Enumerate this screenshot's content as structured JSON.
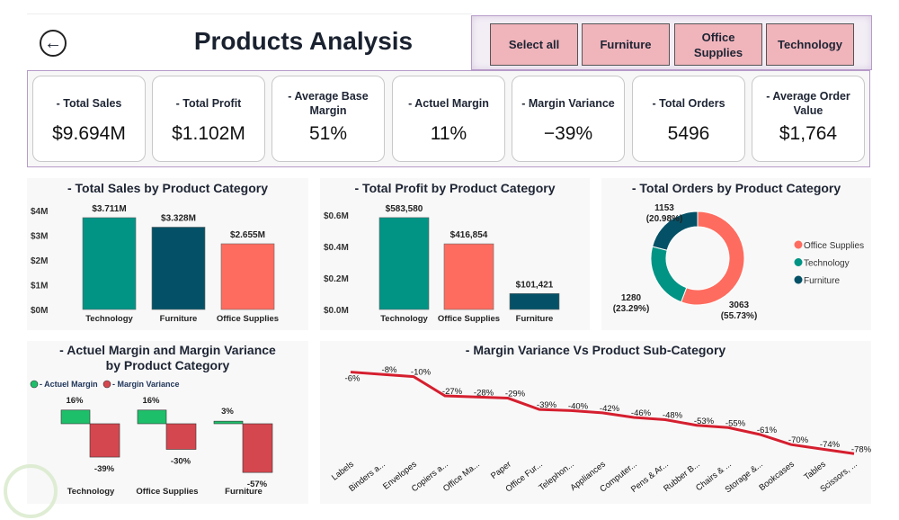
{
  "header": {
    "title": "Products Analysis",
    "back_icon": "arrow-left-circle-icon"
  },
  "slicer": {
    "buttons": [
      "Select all",
      "Furniture",
      "Office Supplies",
      "Technology"
    ],
    "color": "#f0b4bb"
  },
  "kpis": [
    {
      "label": "- Total Sales",
      "value": "$9.694M"
    },
    {
      "label": "- Total Profit",
      "value": "$1.102M"
    },
    {
      "label": "- Average Base Margin",
      "value": "51%"
    },
    {
      "label": "- Actuel Margin",
      "value": "11%"
    },
    {
      "label": "- Margin Variance",
      "value": "−39%"
    },
    {
      "label": "- Total Orders",
      "value": "5496"
    },
    {
      "label": "- Average Order Value",
      "value": "$1,764"
    }
  ],
  "colors": {
    "Technology": "#019485",
    "Furniture": "#045167",
    "Office Supplies": "#fe6c5f",
    "actuel": "#1ebf6a",
    "variance": "#d5474f",
    "line": "#d51f2f"
  },
  "chart_data": [
    {
      "type": "bar",
      "title": "- Total Sales by Product Category",
      "categories": [
        "Technology",
        "Furniture",
        "Office Supplies"
      ],
      "values": [
        3.711,
        3.328,
        2.655
      ],
      "data_labels": [
        "$3.711M",
        "$3.328M",
        "$2.655M"
      ],
      "yticks": [
        "$0M",
        "$1M",
        "$2M",
        "$3M",
        "$4M"
      ],
      "ylim": [
        0,
        4
      ]
    },
    {
      "type": "bar",
      "title": "- Total Profit by Product Category",
      "categories": [
        "Technology",
        "Office Supplies",
        "Furniture"
      ],
      "values": [
        583580,
        416854,
        101421
      ],
      "data_labels": [
        "$583,580",
        "$416,854",
        "$101,421"
      ],
      "yticks": [
        "$0.0M",
        "$0.2M",
        "$0.4M",
        "$0.6M"
      ],
      "ylim": [
        0,
        0.6
      ]
    },
    {
      "type": "pie",
      "title": "- Total Orders by Product Category",
      "categories": [
        "Office Supplies",
        "Technology",
        "Furniture"
      ],
      "values": [
        3063,
        1280,
        1153
      ],
      "percent_labels": [
        "(55.73%)",
        "(23.29%)",
        "(20.98%)"
      ],
      "legend": "right"
    },
    {
      "type": "bar",
      "title": "- Actuel Margin and Margin Variance by Product Category",
      "categories": [
        "Technology",
        "Office Supplies",
        "Furniture"
      ],
      "series": [
        {
          "name": "- Actuel Margin",
          "values": [
            16,
            16,
            3
          ],
          "labels": [
            "16%",
            "16%",
            "3%"
          ]
        },
        {
          "name": "- Margin Variance",
          "values": [
            -39,
            -30,
            -57
          ],
          "labels": [
            "-39%",
            "-30%",
            "-57%"
          ]
        }
      ],
      "legend": "top-left"
    },
    {
      "type": "line",
      "title": "- Margin Variance Vs Product Sub-Category",
      "categories": [
        "Labels",
        "Binders a...",
        "Envelopes",
        "Copiers a...",
        "Office Ma...",
        "Paper",
        "Office Fur...",
        "Telephon...",
        "Appliances",
        "Computer...",
        "Pens & Ar...",
        "Rubber B...",
        "Chairs & ...",
        "Storage &...",
        "Bookcases",
        "Tables",
        "Scissors, ..."
      ],
      "values": [
        -6,
        -8,
        -10,
        -27,
        -28,
        -29,
        -39,
        -40,
        -42,
        -46,
        -48,
        -53,
        -55,
        -61,
        -70,
        -74,
        -78
      ],
      "labels": [
        "-6%",
        "-8%",
        "-10%",
        "-27%",
        "-28%",
        "-29%",
        "-39%",
        "-40%",
        "-42%",
        "-46%",
        "-48%",
        "-53%",
        "-55%",
        "-61%",
        "-70%",
        "-74%",
        "-78%"
      ]
    }
  ]
}
